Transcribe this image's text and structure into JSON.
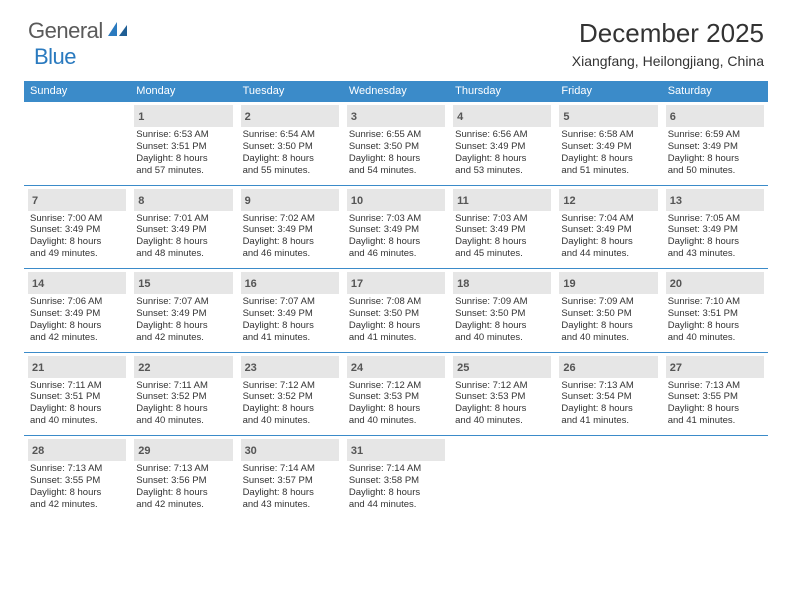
{
  "logo": {
    "text1": "General",
    "text2": "Blue"
  },
  "title": {
    "month": "December 2025",
    "location": "Xiangfang, Heilongjiang, China"
  },
  "colors": {
    "header_bg": "#3b8bc9",
    "header_text": "#ffffff",
    "daynum_bg": "#e6e6e6",
    "body_text": "#333333",
    "logo_gray": "#5a5a5a",
    "logo_blue": "#2a7abf"
  },
  "weekdays": [
    "Sunday",
    "Monday",
    "Tuesday",
    "Wednesday",
    "Thursday",
    "Friday",
    "Saturday"
  ],
  "weeks": [
    [
      {
        "n": "",
        "l": [
          "",
          "",
          "",
          ""
        ]
      },
      {
        "n": "1",
        "l": [
          "Sunrise: 6:53 AM",
          "Sunset: 3:51 PM",
          "Daylight: 8 hours",
          "and 57 minutes."
        ]
      },
      {
        "n": "2",
        "l": [
          "Sunrise: 6:54 AM",
          "Sunset: 3:50 PM",
          "Daylight: 8 hours",
          "and 55 minutes."
        ]
      },
      {
        "n": "3",
        "l": [
          "Sunrise: 6:55 AM",
          "Sunset: 3:50 PM",
          "Daylight: 8 hours",
          "and 54 minutes."
        ]
      },
      {
        "n": "4",
        "l": [
          "Sunrise: 6:56 AM",
          "Sunset: 3:49 PM",
          "Daylight: 8 hours",
          "and 53 minutes."
        ]
      },
      {
        "n": "5",
        "l": [
          "Sunrise: 6:58 AM",
          "Sunset: 3:49 PM",
          "Daylight: 8 hours",
          "and 51 minutes."
        ]
      },
      {
        "n": "6",
        "l": [
          "Sunrise: 6:59 AM",
          "Sunset: 3:49 PM",
          "Daylight: 8 hours",
          "and 50 minutes."
        ]
      }
    ],
    [
      {
        "n": "7",
        "l": [
          "Sunrise: 7:00 AM",
          "Sunset: 3:49 PM",
          "Daylight: 8 hours",
          "and 49 minutes."
        ]
      },
      {
        "n": "8",
        "l": [
          "Sunrise: 7:01 AM",
          "Sunset: 3:49 PM",
          "Daylight: 8 hours",
          "and 48 minutes."
        ]
      },
      {
        "n": "9",
        "l": [
          "Sunrise: 7:02 AM",
          "Sunset: 3:49 PM",
          "Daylight: 8 hours",
          "and 46 minutes."
        ]
      },
      {
        "n": "10",
        "l": [
          "Sunrise: 7:03 AM",
          "Sunset: 3:49 PM",
          "Daylight: 8 hours",
          "and 46 minutes."
        ]
      },
      {
        "n": "11",
        "l": [
          "Sunrise: 7:03 AM",
          "Sunset: 3:49 PM",
          "Daylight: 8 hours",
          "and 45 minutes."
        ]
      },
      {
        "n": "12",
        "l": [
          "Sunrise: 7:04 AM",
          "Sunset: 3:49 PM",
          "Daylight: 8 hours",
          "and 44 minutes."
        ]
      },
      {
        "n": "13",
        "l": [
          "Sunrise: 7:05 AM",
          "Sunset: 3:49 PM",
          "Daylight: 8 hours",
          "and 43 minutes."
        ]
      }
    ],
    [
      {
        "n": "14",
        "l": [
          "Sunrise: 7:06 AM",
          "Sunset: 3:49 PM",
          "Daylight: 8 hours",
          "and 42 minutes."
        ]
      },
      {
        "n": "15",
        "l": [
          "Sunrise: 7:07 AM",
          "Sunset: 3:49 PM",
          "Daylight: 8 hours",
          "and 42 minutes."
        ]
      },
      {
        "n": "16",
        "l": [
          "Sunrise: 7:07 AM",
          "Sunset: 3:49 PM",
          "Daylight: 8 hours",
          "and 41 minutes."
        ]
      },
      {
        "n": "17",
        "l": [
          "Sunrise: 7:08 AM",
          "Sunset: 3:50 PM",
          "Daylight: 8 hours",
          "and 41 minutes."
        ]
      },
      {
        "n": "18",
        "l": [
          "Sunrise: 7:09 AM",
          "Sunset: 3:50 PM",
          "Daylight: 8 hours",
          "and 40 minutes."
        ]
      },
      {
        "n": "19",
        "l": [
          "Sunrise: 7:09 AM",
          "Sunset: 3:50 PM",
          "Daylight: 8 hours",
          "and 40 minutes."
        ]
      },
      {
        "n": "20",
        "l": [
          "Sunrise: 7:10 AM",
          "Sunset: 3:51 PM",
          "Daylight: 8 hours",
          "and 40 minutes."
        ]
      }
    ],
    [
      {
        "n": "21",
        "l": [
          "Sunrise: 7:11 AM",
          "Sunset: 3:51 PM",
          "Daylight: 8 hours",
          "and 40 minutes."
        ]
      },
      {
        "n": "22",
        "l": [
          "Sunrise: 7:11 AM",
          "Sunset: 3:52 PM",
          "Daylight: 8 hours",
          "and 40 minutes."
        ]
      },
      {
        "n": "23",
        "l": [
          "Sunrise: 7:12 AM",
          "Sunset: 3:52 PM",
          "Daylight: 8 hours",
          "and 40 minutes."
        ]
      },
      {
        "n": "24",
        "l": [
          "Sunrise: 7:12 AM",
          "Sunset: 3:53 PM",
          "Daylight: 8 hours",
          "and 40 minutes."
        ]
      },
      {
        "n": "25",
        "l": [
          "Sunrise: 7:12 AM",
          "Sunset: 3:53 PM",
          "Daylight: 8 hours",
          "and 40 minutes."
        ]
      },
      {
        "n": "26",
        "l": [
          "Sunrise: 7:13 AM",
          "Sunset: 3:54 PM",
          "Daylight: 8 hours",
          "and 41 minutes."
        ]
      },
      {
        "n": "27",
        "l": [
          "Sunrise: 7:13 AM",
          "Sunset: 3:55 PM",
          "Daylight: 8 hours",
          "and 41 minutes."
        ]
      }
    ],
    [
      {
        "n": "28",
        "l": [
          "Sunrise: 7:13 AM",
          "Sunset: 3:55 PM",
          "Daylight: 8 hours",
          "and 42 minutes."
        ]
      },
      {
        "n": "29",
        "l": [
          "Sunrise: 7:13 AM",
          "Sunset: 3:56 PM",
          "Daylight: 8 hours",
          "and 42 minutes."
        ]
      },
      {
        "n": "30",
        "l": [
          "Sunrise: 7:14 AM",
          "Sunset: 3:57 PM",
          "Daylight: 8 hours",
          "and 43 minutes."
        ]
      },
      {
        "n": "31",
        "l": [
          "Sunrise: 7:14 AM",
          "Sunset: 3:58 PM",
          "Daylight: 8 hours",
          "and 44 minutes."
        ]
      },
      {
        "n": "",
        "l": [
          "",
          "",
          "",
          ""
        ]
      },
      {
        "n": "",
        "l": [
          "",
          "",
          "",
          ""
        ]
      },
      {
        "n": "",
        "l": [
          "",
          "",
          "",
          ""
        ]
      }
    ]
  ]
}
